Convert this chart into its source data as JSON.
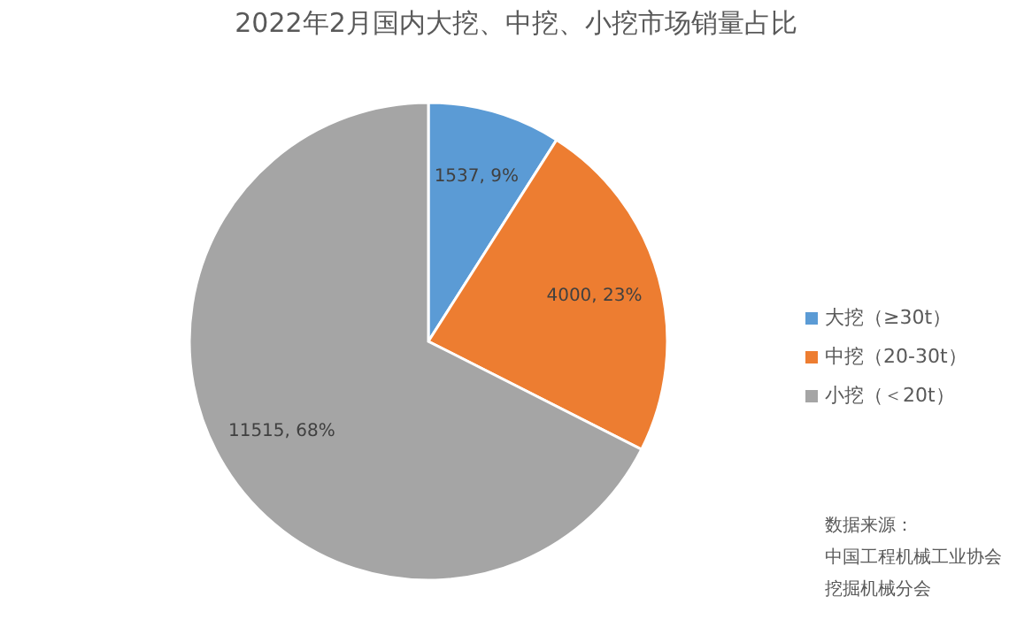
{
  "chart_data": {
    "type": "pie",
    "title": "2022年2月国内大挖、中挖、小挖市场销量占比",
    "categories": [
      "大挖（≥30t）",
      "中挖（20-30t）",
      "小挖（＜20t）"
    ],
    "values": [
      1537,
      4000,
      11515
    ],
    "colors": [
      "#5b9bd5",
      "#ed7d31",
      "#a5a5a5"
    ],
    "value_labels": [
      "1537, 9%",
      "4000, 23%",
      "11515, 68%"
    ],
    "legend": "right",
    "annotations": [
      "数据来源：",
      "中国工程机械工业协会",
      "挖掘机械分会"
    ]
  }
}
